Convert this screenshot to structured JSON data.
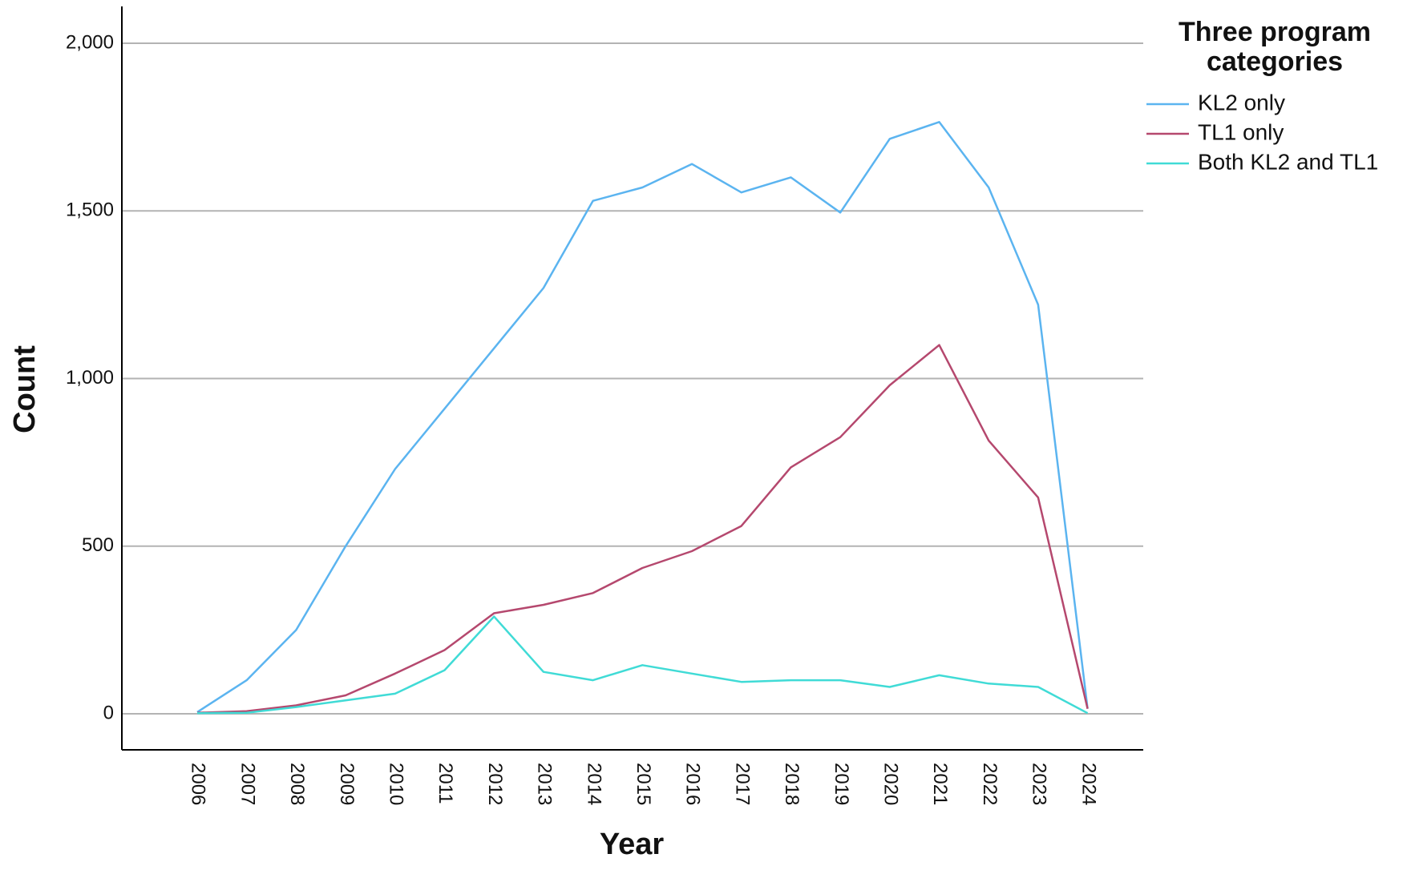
{
  "chart_data": {
    "type": "line",
    "title": "",
    "xlabel": "Year",
    "ylabel": "Count",
    "ylim": [
      -100,
      2100
    ],
    "yticks": [
      0,
      500,
      1000,
      1500,
      2000
    ],
    "ytick_labels": [
      "0",
      "500",
      "1,000",
      "1,500",
      "2,000"
    ],
    "grid": "horizontal",
    "legend": {
      "position": "top-right",
      "title": "Three program categories",
      "title_lines": [
        "Three program",
        "categories"
      ]
    },
    "categories": [
      "2006",
      "2007",
      "2008",
      "2009",
      "2010",
      "2011",
      "2012",
      "2013",
      "2014",
      "2015",
      "2016",
      "2017",
      "2018",
      "2019",
      "2020",
      "2021",
      "2022",
      "2023",
      "2024"
    ],
    "series": [
      {
        "name": "KL2 only",
        "color": "#5bb4f0",
        "values": [
          5,
          100,
          250,
          500,
          730,
          910,
          1090,
          1270,
          1530,
          1570,
          1640,
          1555,
          1600,
          1495,
          1715,
          1765,
          1570,
          1220,
          15
        ]
      },
      {
        "name": "TL1 only",
        "color": "#b5486e",
        "values": [
          3,
          8,
          25,
          55,
          120,
          190,
          300,
          325,
          360,
          435,
          485,
          560,
          735,
          825,
          980,
          1100,
          815,
          645,
          15
        ]
      },
      {
        "name": "Both KL2 and TL1",
        "color": "#40dbd6",
        "values": [
          2,
          3,
          20,
          40,
          60,
          130,
          290,
          125,
          100,
          145,
          120,
          95,
          100,
          100,
          80,
          115,
          90,
          80,
          2
        ]
      }
    ]
  }
}
